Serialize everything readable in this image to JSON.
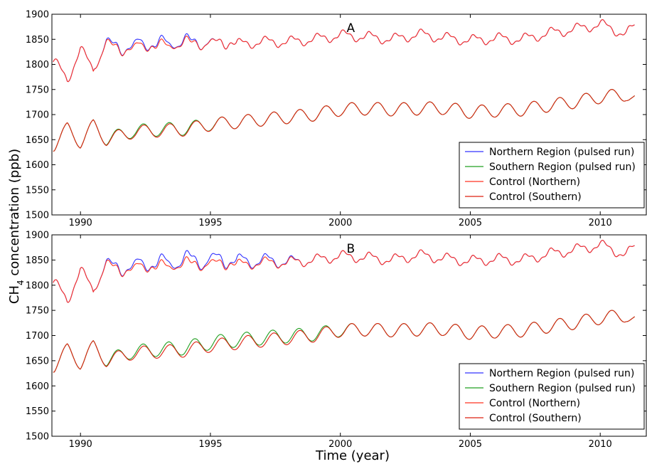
{
  "figure": {
    "xlabel": "Time (year)",
    "ylabel_main": "CH",
    "ylabel_sub": "4",
    "ylabel_rest": " concentration (ppb)"
  },
  "colors": {
    "northern_pulsed": "#3333ff",
    "southern_pulsed": "#22a022",
    "control_northern": "#ff3322",
    "control_southern": "#dd2211",
    "overlap": "#a01a5a"
  },
  "chart_data": [
    {
      "type": "line",
      "panel_label": "A",
      "xlim": [
        1988.9,
        2011.8
      ],
      "ylim": [
        1500,
        1900
      ],
      "x_ticks": [
        1990,
        1995,
        2000,
        2005,
        2010
      ],
      "y_ticks": [
        1500,
        1550,
        1600,
        1650,
        1700,
        1750,
        1800,
        1850,
        1900
      ],
      "legend_position": "lower-right",
      "legend": [
        "Northern Region (pulsed run)",
        "Southern Region (pulsed run)",
        "Control (Northern)",
        "Control (Southern)"
      ],
      "series": [
        {
          "name": "Northern Region (pulsed run)",
          "color_key": "northern_pulsed",
          "region": "north",
          "pulse_amp": 8,
          "pulse_end": 1995.2
        },
        {
          "name": "Southern Region (pulsed run)",
          "color_key": "southern_pulsed",
          "region": "south",
          "pulse_amp": 4,
          "pulse_end": 1995.5
        },
        {
          "name": "Control (Northern)",
          "color_key": "control_northern",
          "region": "north",
          "pulse_amp": 0,
          "pulse_end": 1995.2
        },
        {
          "name": "Control (Southern)",
          "color_key": "control_southern",
          "region": "south",
          "pulse_amp": 0,
          "pulse_end": 1995.5
        }
      ],
      "approx_points": {
        "north": {
          "x": [
            1989.0,
            1989.5,
            1990.0,
            1990.5,
            1991.0,
            1992.0,
            1993.0,
            1994.0,
            1995.0,
            1996.0,
            1997.0,
            1998.0,
            1999.0,
            2000.0,
            2001.0,
            2002.0,
            2003.0,
            2004.0,
            2005.0,
            2006.0,
            2007.0,
            2008.0,
            2009.0,
            2010.0,
            2011.0,
            2011.3
          ],
          "y": [
            1805,
            1770,
            1830,
            1790,
            1840,
            1830,
            1840,
            1840,
            1845,
            1840,
            1845,
            1845,
            1850,
            1858,
            1855,
            1850,
            1860,
            1853,
            1848,
            1852,
            1850,
            1862,
            1870,
            1880,
            1860,
            1875
          ]
        },
        "south": {
          "x": [
            1989.0,
            1989.5,
            1990.0,
            1990.5,
            1991.0,
            1992.0,
            1993.0,
            1994.0,
            1995.0,
            1996.0,
            1997.0,
            1998.0,
            1999.0,
            2000.0,
            2001.0,
            2002.0,
            2003.0,
            2004.0,
            2005.0,
            2006.0,
            2007.0,
            2008.0,
            2009.0,
            2010.0,
            2011.0,
            2011.3
          ],
          "y": [
            1640,
            1672,
            1645,
            1678,
            1650,
            1665,
            1668,
            1670,
            1680,
            1685,
            1690,
            1695,
            1700,
            1710,
            1712,
            1710,
            1712,
            1713,
            1705,
            1708,
            1710,
            1718,
            1725,
            1735,
            1740,
            1728
          ]
        }
      }
    },
    {
      "type": "line",
      "panel_label": "B",
      "xlim": [
        1988.9,
        2011.8
      ],
      "ylim": [
        1500,
        1900
      ],
      "x_ticks": [
        1990,
        1995,
        2000,
        2005,
        2010
      ],
      "y_ticks": [
        1500,
        1550,
        1600,
        1650,
        1700,
        1750,
        1800,
        1850,
        1900
      ],
      "legend_position": "lower-right",
      "legend": [
        "Northern Region (pulsed run)",
        "Southern Region (pulsed run)",
        "Control (Northern)",
        "Control (Southern)"
      ],
      "series": [
        {
          "name": "Northern Region (pulsed run)",
          "color_key": "northern_pulsed",
          "region": "north",
          "pulse_amp": 14,
          "pulse_end": 1998.5
        },
        {
          "name": "Southern Region (pulsed run)",
          "color_key": "southern_pulsed",
          "region": "south",
          "pulse_amp": 11,
          "pulse_end": 2000.5
        },
        {
          "name": "Control (Northern)",
          "color_key": "control_northern",
          "region": "north",
          "pulse_amp": 0,
          "pulse_end": 1998.5
        },
        {
          "name": "Control (Southern)",
          "color_key": "control_southern",
          "region": "south",
          "pulse_amp": 0,
          "pulse_end": 2000.5
        }
      ],
      "approx_points": {
        "north": {
          "x": [
            1989.0,
            1989.5,
            1990.0,
            1990.5,
            1991.0,
            1992.0,
            1993.0,
            1994.0,
            1995.0,
            1996.0,
            1997.0,
            1998.0,
            1999.0,
            2000.0,
            2001.0,
            2002.0,
            2003.0,
            2004.0,
            2005.0,
            2006.0,
            2007.0,
            2008.0,
            2009.0,
            2010.0,
            2011.0,
            2011.3
          ],
          "y": [
            1805,
            1770,
            1830,
            1790,
            1840,
            1830,
            1840,
            1840,
            1845,
            1840,
            1845,
            1845,
            1850,
            1858,
            1855,
            1850,
            1860,
            1853,
            1848,
            1852,
            1850,
            1862,
            1870,
            1880,
            1860,
            1875
          ]
        },
        "south": {
          "x": [
            1989.0,
            1989.5,
            1990.0,
            1990.5,
            1991.0,
            1992.0,
            1993.0,
            1994.0,
            1995.0,
            1996.0,
            1997.0,
            1998.0,
            1999.0,
            2000.0,
            2001.0,
            2002.0,
            2003.0,
            2004.0,
            2005.0,
            2006.0,
            2007.0,
            2008.0,
            2009.0,
            2010.0,
            2011.0,
            2011.3
          ],
          "y": [
            1640,
            1672,
            1645,
            1678,
            1650,
            1665,
            1668,
            1670,
            1680,
            1685,
            1690,
            1695,
            1700,
            1710,
            1712,
            1710,
            1712,
            1713,
            1705,
            1708,
            1710,
            1718,
            1725,
            1735,
            1740,
            1728
          ]
        }
      }
    }
  ]
}
